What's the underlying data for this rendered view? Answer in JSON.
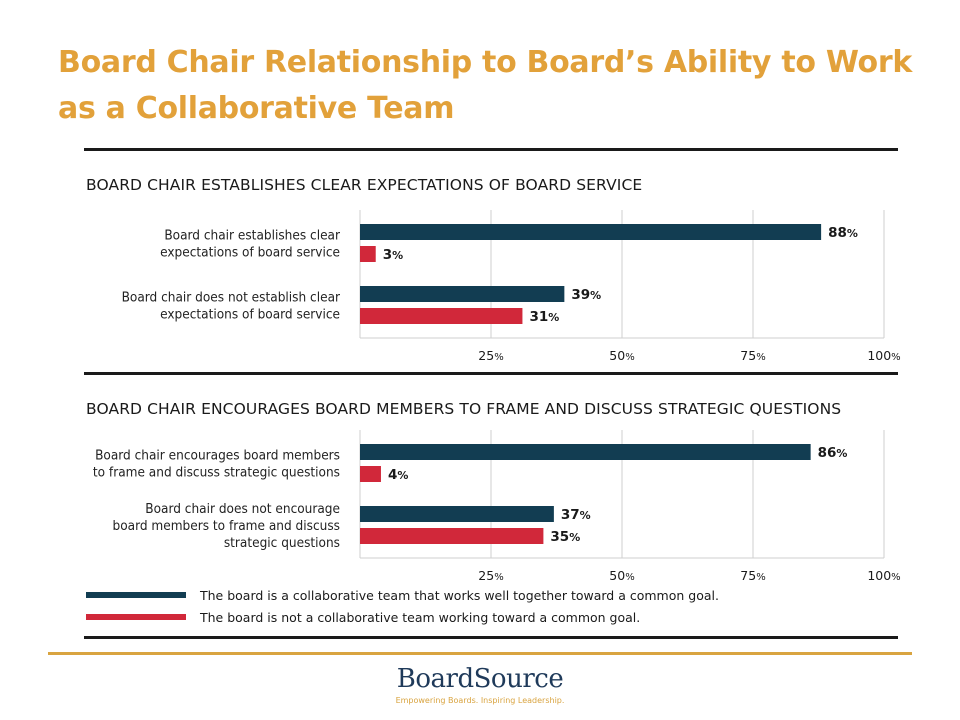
{
  "title": "Board Chair Relationship to Board’s Ability to Work as a Collaborative Team",
  "colors": {
    "collaborative": "#123D52",
    "not_collaborative": "#D1283A",
    "title": "#E2A13A"
  },
  "legend": [
    {
      "key": "collaborative",
      "label": "The board is a collaborative team that works well together toward a common goal."
    },
    {
      "key": "not_collaborative",
      "label": "The board is not a collaborative team working toward a common goal."
    }
  ],
  "chart_data": [
    {
      "type": "bar",
      "orientation": "horizontal",
      "title": "BOARD CHAIR ESTABLISHES CLEAR EXPECTATIONS OF BOARD SERVICE",
      "categories": [
        [
          "Board chair establishes clear",
          "expectations of board service"
        ],
        [
          "Board chair does not establish clear",
          "expectations of board service"
        ]
      ],
      "series": [
        {
          "key": "collaborative",
          "values": [
            88,
            39
          ]
        },
        {
          "key": "not_collaborative",
          "values": [
            3,
            31
          ]
        }
      ],
      "xlim": [
        0,
        100
      ],
      "ticks": [
        25,
        50,
        75,
        100
      ],
      "tick_suffix": "%",
      "grid": true
    },
    {
      "type": "bar",
      "orientation": "horizontal",
      "title": "BOARD CHAIR ENCOURAGES BOARD MEMBERS TO FRAME AND DISCUSS STRATEGIC QUESTIONS",
      "categories": [
        [
          "Board chair encourages board members",
          "to frame and discuss strategic questions"
        ],
        [
          "Board chair does not encourage",
          "board members to frame and discuss",
          "strategic questions"
        ]
      ],
      "series": [
        {
          "key": "collaborative",
          "values": [
            86,
            37
          ]
        },
        {
          "key": "not_collaborative",
          "values": [
            4,
            35
          ]
        }
      ],
      "xlim": [
        0,
        100
      ],
      "ticks": [
        25,
        50,
        75,
        100
      ],
      "tick_suffix": "%",
      "grid": true
    }
  ],
  "logo": {
    "wordmark": "BoardSource",
    "tagline": "Empowering Boards. Inspiring Leadership."
  }
}
